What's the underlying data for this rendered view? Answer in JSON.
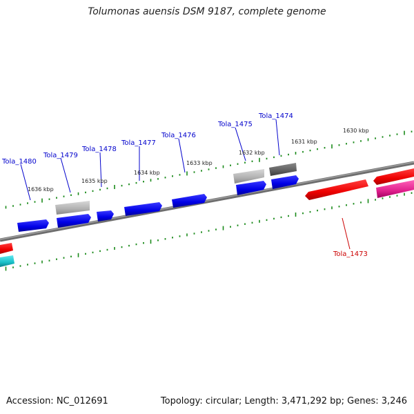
{
  "title": "Tolumonas auensis DSM 9187, complete genome",
  "footer": {
    "accession": "Accession: NC_012691",
    "summary": "Topology: circular; Length: 3,471,292 bp; Genes: 3,246"
  },
  "colors": {
    "backbone": "#7a7a7a",
    "tick": "#1a8a1a",
    "label_forward": "#0000cc",
    "label_reverse": "#cc0000",
    "cds_forward": "#0000ee",
    "cds_reverse": "#ee0000",
    "pseudo_light": "#b0b0b0",
    "pseudo_dark": "#606060",
    "rna_magenta": "#e0208c",
    "rna_cyan": "#18c0c8"
  },
  "scale_labels": [
    "1636 kbp",
    "1635 kbp",
    "1634 kbp",
    "1633 kbp",
    "1632 kbp",
    "1631 kbp",
    "1630 kbp"
  ],
  "gene_labels": [
    {
      "text": "Tola_1480",
      "strand": "forward"
    },
    {
      "text": "Tola_1479",
      "strand": "forward"
    },
    {
      "text": "Tola_1478",
      "strand": "forward"
    },
    {
      "text": "Tola_1477",
      "strand": "forward"
    },
    {
      "text": "Tola_1476",
      "strand": "forward"
    },
    {
      "text": "Tola_1475",
      "strand": "forward"
    },
    {
      "text": "Tola_1474",
      "strand": "forward"
    },
    {
      "text": "Tola_1473",
      "strand": "reverse"
    }
  ]
}
